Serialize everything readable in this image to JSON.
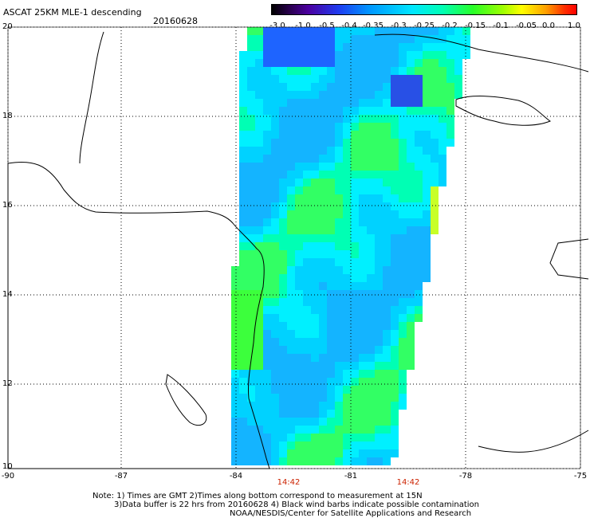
{
  "header": {
    "title": "ASCAT 25KM MLE-1 descending",
    "date": "20160628"
  },
  "colorbar": {
    "labels": [
      "-3.0",
      "-1.0",
      "-0.5",
      "-0.4",
      "-0.35",
      "-0.3",
      "-0.25",
      "-0.2",
      "-0.15",
      "-0.1",
      "-0.05",
      "0.0",
      "1.0"
    ]
  },
  "map": {
    "lat_labels": [
      "20",
      "18",
      "16",
      "14",
      "12",
      "10"
    ],
    "lon_labels": [
      "-90",
      "-87",
      "-84",
      "-81",
      "-78",
      "-75"
    ],
    "time_labels": [
      "14:42",
      "14:42"
    ]
  },
  "notes": {
    "line1": "Note: 1) Times are GMT 2)Times along bottom correspond to measurement at 15N",
    "line2": "3)Data buffer is 22 hrs from 20160628 4) Black wind barbs indicate possible contamination",
    "line3": "NOAA/NESDIS/Center for Satellite Applications and Research"
  },
  "colors": {
    "accent_time": "#cc2200",
    "grid": "#000000"
  }
}
